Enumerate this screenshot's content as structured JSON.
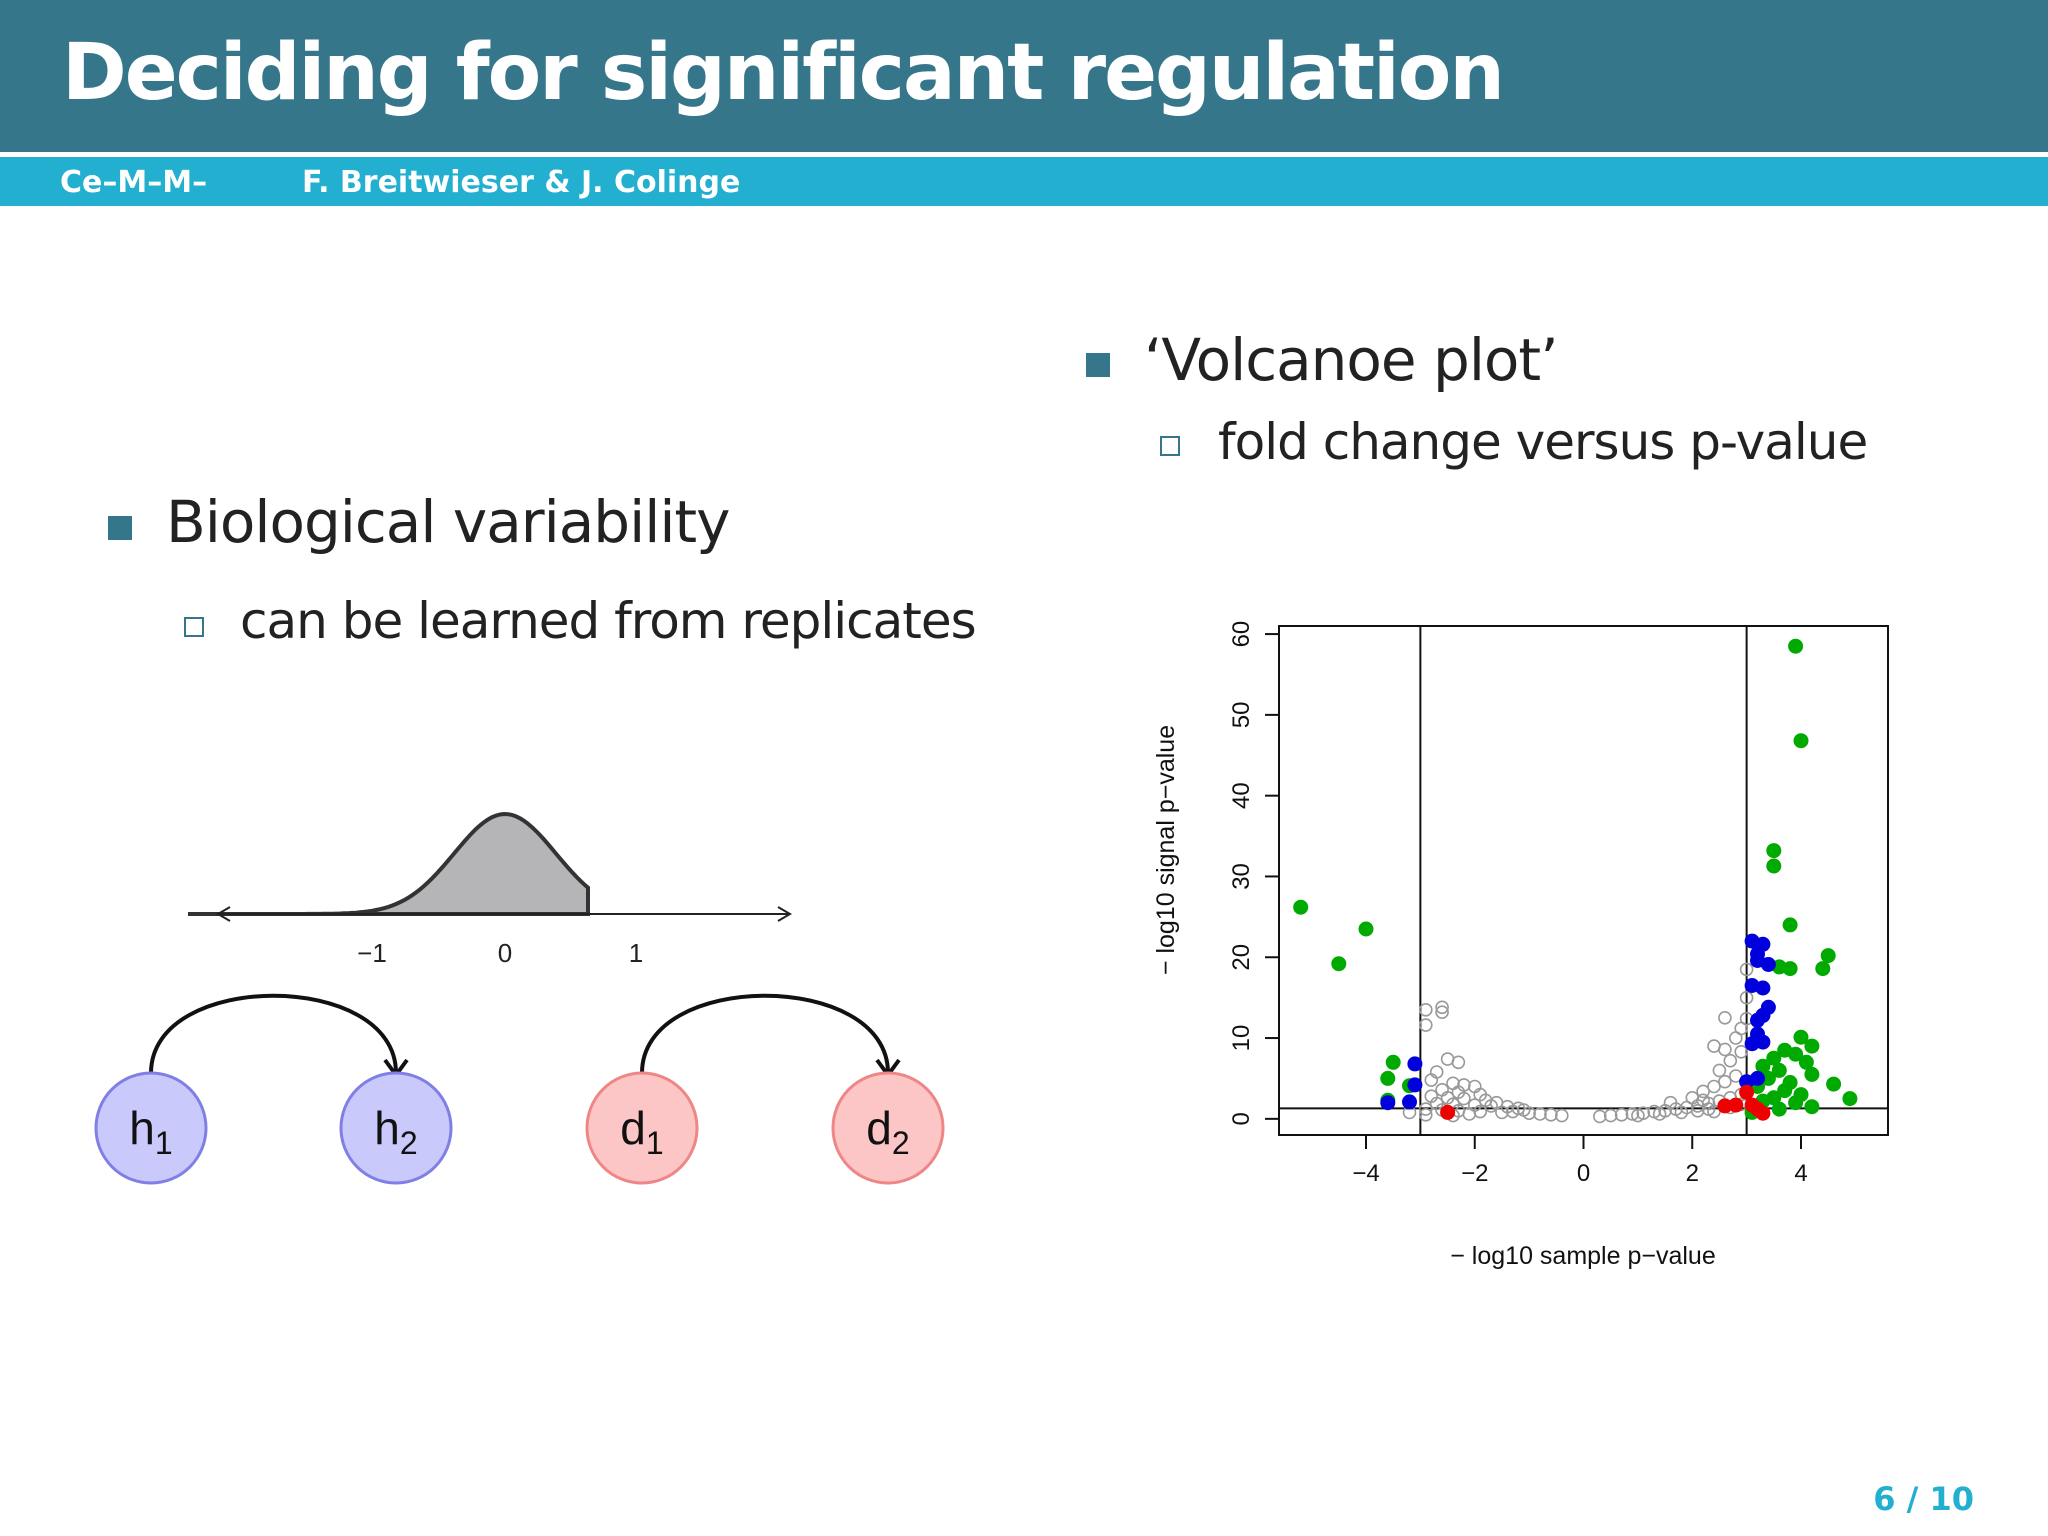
{
  "slide": {
    "title": "Deciding for significant regulation",
    "short_title": "Ce–M–M–",
    "authors": "F. Breitwieser & J. Colinge",
    "page": "6 / 10",
    "colors": {
      "title_bar": "#36768b",
      "sub_bar": "#23afcf",
      "bullet": "#36768b"
    }
  },
  "left": {
    "bullet": "Biological variability",
    "sub_bullet": "can be learned from replicates",
    "diagram": {
      "axis_ticks": [
        "−1",
        "0",
        "1"
      ],
      "healthy_nodes": [
        {
          "base": "h",
          "sub": "1"
        },
        {
          "base": "h",
          "sub": "2"
        }
      ],
      "disease_nodes": [
        {
          "base": "d",
          "sub": "1"
        },
        {
          "base": "d",
          "sub": "2"
        }
      ],
      "colors": {
        "healthy_fill": "#c9c9fb",
        "healthy_stroke": "#7f7fe6",
        "disease_fill": "#fcc6c6",
        "disease_stroke": "#ef8686",
        "curve_fill": "#b5b5b8"
      }
    }
  },
  "right": {
    "bullet": "‘Volcanoe plot’",
    "sub_bullet": "fold change versus p-value"
  },
  "chart_data": {
    "type": "scatter",
    "title": "",
    "xlabel": "− log10 sample p−value",
    "ylabel": "− log10 signal p−value",
    "xlim": [
      -5.6,
      5.6
    ],
    "ylim": [
      -2,
      61
    ],
    "x_ticks": [
      -4,
      -2,
      0,
      2,
      4
    ],
    "x_tick_labels": [
      "−4",
      "−2",
      "0",
      "2",
      "4"
    ],
    "y_ticks": [
      0,
      10,
      20,
      30,
      40,
      50,
      60
    ],
    "y_tick_labels": [
      "0",
      "10",
      "20",
      "30",
      "40",
      "50",
      "60"
    ],
    "reference_lines": {
      "vertical": [
        -3,
        3
      ],
      "horizontal": [
        1.3
      ]
    },
    "grid": false,
    "legend": "none",
    "series": [
      {
        "color": "#999999",
        "marker": "open-circle",
        "points": [
          [
            -2.9,
            13.5
          ],
          [
            -2.6,
            13.8
          ],
          [
            -2.6,
            13.2
          ],
          [
            -2.9,
            11.6
          ],
          [
            -2.5,
            7.4
          ],
          [
            -2.3,
            7.0
          ],
          [
            -2.7,
            5.8
          ],
          [
            -2.8,
            4.8
          ],
          [
            -2.4,
            4.4
          ],
          [
            -2.2,
            4.2
          ],
          [
            -2.0,
            4.0
          ],
          [
            -2.6,
            3.6
          ],
          [
            -2.3,
            3.3
          ],
          [
            -1.9,
            3.0
          ],
          [
            -2.8,
            2.8
          ],
          [
            -2.5,
            2.6
          ],
          [
            -2.2,
            2.5
          ],
          [
            -1.8,
            2.3
          ],
          [
            -1.6,
            2.0
          ],
          [
            -2.7,
            1.9
          ],
          [
            -2.4,
            1.8
          ],
          [
            -2.0,
            1.7
          ],
          [
            -1.7,
            1.6
          ],
          [
            -1.4,
            1.5
          ],
          [
            -1.2,
            1.3
          ],
          [
            -2.9,
            1.2
          ],
          [
            -2.6,
            1.1
          ],
          [
            -2.3,
            1.0
          ],
          [
            -1.9,
            0.9
          ],
          [
            -1.5,
            0.8
          ],
          [
            -1.0,
            0.7
          ],
          [
            -0.8,
            0.6
          ],
          [
            -0.6,
            0.5
          ],
          [
            -0.4,
            0.4
          ],
          [
            -2.1,
            0.6
          ],
          [
            -1.3,
            0.9
          ],
          [
            -1.1,
            1.1
          ],
          [
            -3.2,
            0.8
          ],
          [
            -2.9,
            0.5
          ],
          [
            -2.4,
            0.4
          ],
          [
            0.3,
            0.3
          ],
          [
            0.5,
            0.4
          ],
          [
            0.7,
            0.5
          ],
          [
            0.9,
            0.6
          ],
          [
            1.1,
            0.7
          ],
          [
            1.3,
            0.9
          ],
          [
            1.5,
            1.0
          ],
          [
            1.7,
            1.2
          ],
          [
            1.9,
            1.4
          ],
          [
            2.1,
            1.6
          ],
          [
            2.3,
            1.9
          ],
          [
            2.5,
            2.2
          ],
          [
            2.7,
            2.6
          ],
          [
            2.9,
            3.0
          ],
          [
            2.2,
            3.4
          ],
          [
            2.4,
            4.0
          ],
          [
            2.6,
            4.6
          ],
          [
            2.8,
            5.3
          ],
          [
            2.5,
            6.0
          ],
          [
            2.7,
            7.2
          ],
          [
            2.9,
            8.3
          ],
          [
            2.6,
            8.6
          ],
          [
            2.4,
            9.0
          ],
          [
            2.8,
            10.0
          ],
          [
            2.9,
            11.2
          ],
          [
            3.0,
            12.4
          ],
          [
            2.6,
            12.5
          ],
          [
            3.0,
            15.0
          ],
          [
            3.0,
            18.5
          ],
          [
            2.3,
            1.2
          ],
          [
            1.8,
            0.8
          ],
          [
            1.4,
            0.6
          ],
          [
            1.0,
            0.4
          ],
          [
            2.0,
            2.6
          ],
          [
            1.6,
            2.0
          ],
          [
            2.2,
            2.3
          ],
          [
            2.7,
            1.4
          ],
          [
            2.9,
            1.8
          ],
          [
            2.4,
            0.9
          ],
          [
            2.1,
            1.0
          ]
        ]
      },
      {
        "color": "#00aa00",
        "marker": "filled-circle",
        "points": [
          [
            -5.2,
            26.2
          ],
          [
            -4.0,
            23.5
          ],
          [
            -4.5,
            19.2
          ],
          [
            -3.5,
            7.0
          ],
          [
            -3.6,
            5.0
          ],
          [
            -3.2,
            4.1
          ],
          [
            -3.6,
            2.3
          ],
          [
            3.9,
            58.5
          ],
          [
            4.0,
            46.8
          ],
          [
            3.5,
            33.2
          ],
          [
            3.5,
            31.3
          ],
          [
            3.8,
            24.0
          ],
          [
            4.5,
            20.2
          ],
          [
            3.6,
            18.8
          ],
          [
            3.8,
            18.6
          ],
          [
            4.4,
            18.6
          ],
          [
            3.3,
            12.8
          ],
          [
            4.0,
            10.1
          ],
          [
            4.2,
            9.0
          ],
          [
            3.7,
            8.5
          ],
          [
            3.9,
            8.0
          ],
          [
            3.5,
            7.5
          ],
          [
            4.1,
            7.0
          ],
          [
            3.3,
            6.5
          ],
          [
            3.6,
            6.0
          ],
          [
            4.2,
            5.5
          ],
          [
            3.4,
            5.0
          ],
          [
            3.8,
            4.5
          ],
          [
            4.6,
            4.3
          ],
          [
            3.2,
            4.0
          ],
          [
            3.7,
            3.5
          ],
          [
            4.0,
            3.0
          ],
          [
            3.5,
            2.6
          ],
          [
            4.9,
            2.5
          ],
          [
            3.3,
            2.2
          ],
          [
            3.9,
            2.0
          ],
          [
            4.2,
            1.5
          ],
          [
            3.6,
            1.2
          ],
          [
            3.1,
            0.8
          ]
        ]
      },
      {
        "color": "#0000dd",
        "marker": "filled-circle",
        "points": [
          [
            3.1,
            22.0
          ],
          [
            3.3,
            21.6
          ],
          [
            3.2,
            20.4
          ],
          [
            3.2,
            19.6
          ],
          [
            3.4,
            19.1
          ],
          [
            3.1,
            16.5
          ],
          [
            3.3,
            16.2
          ],
          [
            3.4,
            13.8
          ],
          [
            3.3,
            12.8
          ],
          [
            3.2,
            12.2
          ],
          [
            3.2,
            10.5
          ],
          [
            3.3,
            9.5
          ],
          [
            3.1,
            9.3
          ],
          [
            3.2,
            5.0
          ],
          [
            3.0,
            4.6
          ],
          [
            -3.1,
            6.8
          ],
          [
            -3.1,
            4.2
          ],
          [
            -3.2,
            2.1
          ],
          [
            -3.6,
            2.0
          ]
        ]
      },
      {
        "color": "#ee0000",
        "marker": "filled-circle",
        "points": [
          [
            -2.5,
            0.8
          ],
          [
            2.6,
            1.6
          ],
          [
            2.8,
            1.7
          ],
          [
            3.0,
            3.3
          ],
          [
            3.1,
            1.7
          ],
          [
            3.2,
            1.2
          ],
          [
            3.3,
            0.7
          ]
        ]
      }
    ]
  }
}
